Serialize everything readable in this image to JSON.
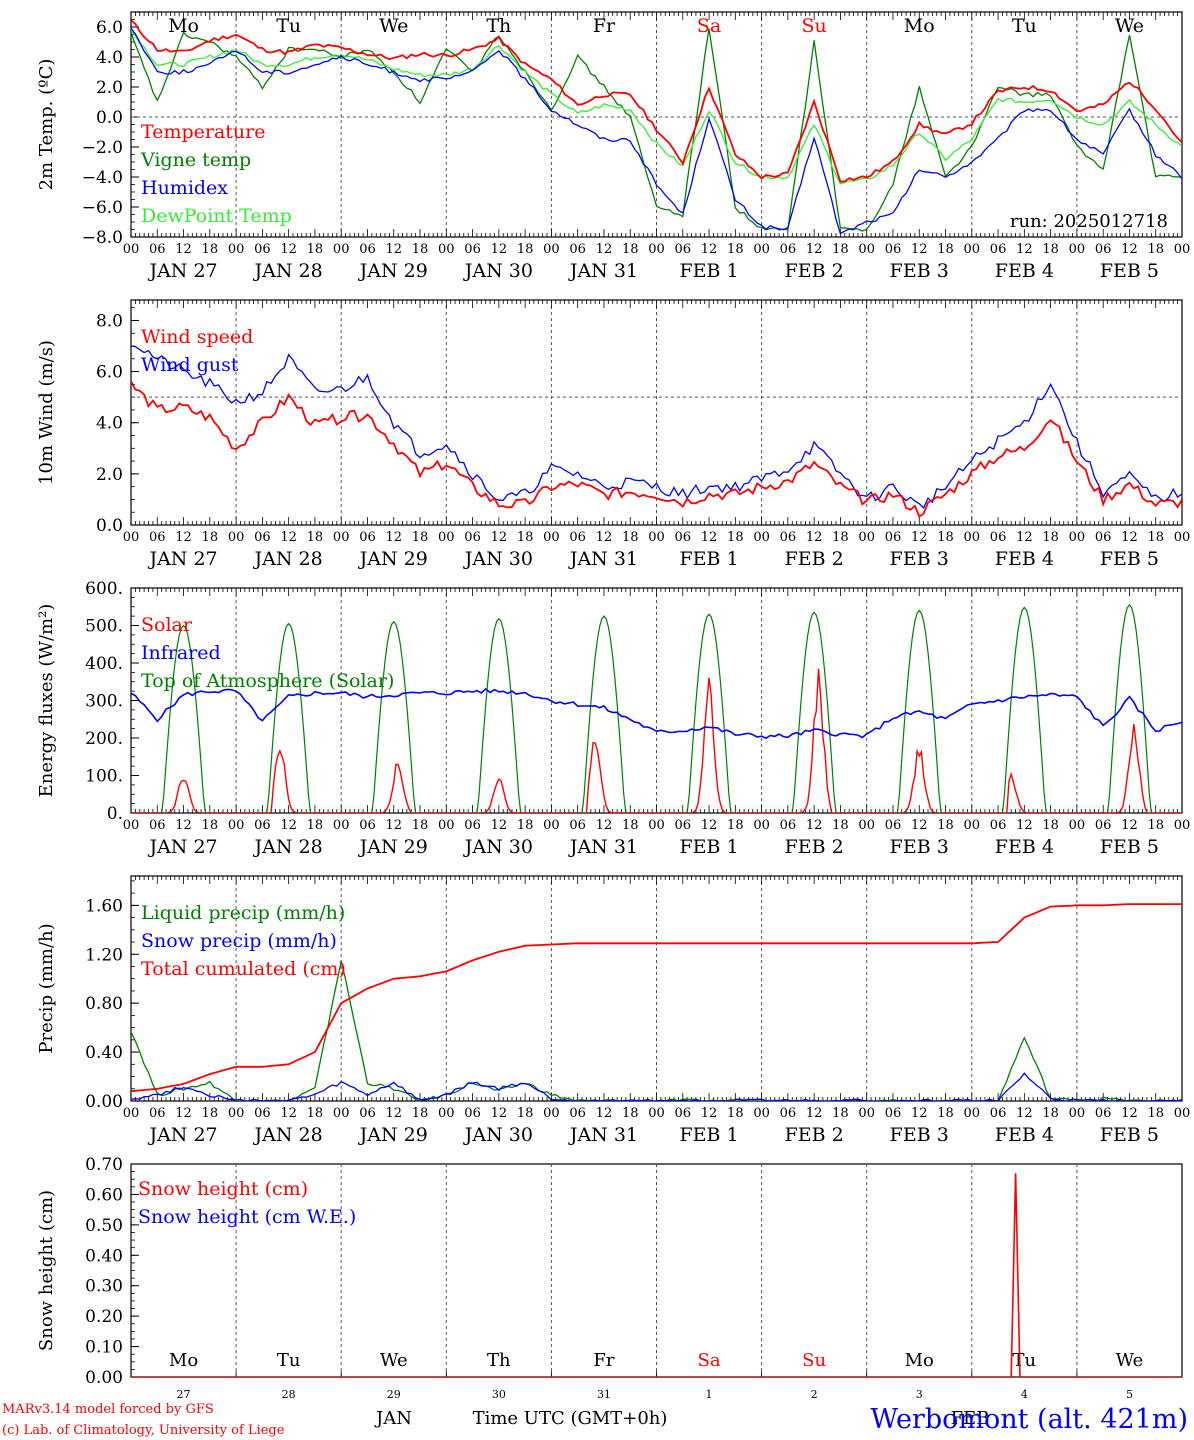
{
  "meteogram": {
    "run_label": "run: 2025012718",
    "footer_model": "MARv3.14 model forced by GFS",
    "footer_lab": "(c) Lab. of Climatology, University of Liege",
    "station": "Werbomont (alt. 421m)",
    "bottom_month_1": "JAN",
    "bottom_month_2": "FEB",
    "time_axis_title": "Time UTC (GMT+0h)"
  },
  "colors": {
    "red": "#ff0000",
    "green": "#008000",
    "blue": "#0000ff",
    "lightgreen": "#33ee33",
    "grid": "#555555"
  },
  "chart_data": [
    {
      "type": "line",
      "ylabel": "2m Temp. (ºC)",
      "ylim": [
        -8,
        7
      ],
      "yticks": [
        "6.0",
        "4.0",
        "2.0",
        "0.0",
        "−2.0",
        "−4.0",
        "−6.0",
        "−8.0"
      ],
      "ytick_values": [
        6,
        4,
        2,
        0,
        -2,
        -4,
        -6,
        -8
      ],
      "x_hours": [
        0,
        6,
        12,
        18,
        24,
        30,
        36,
        42,
        48,
        54,
        60,
        66,
        72,
        78,
        84,
        90,
        96,
        102,
        108,
        114,
        120,
        126,
        132,
        138,
        144,
        150,
        156,
        162,
        168,
        174,
        180,
        186,
        192,
        198,
        204,
        210,
        216,
        222,
        228,
        234,
        240
      ],
      "series": [
        {
          "name": "Temperature",
          "color": "red",
          "values": [
            6.4,
            4.5,
            4.3,
            5.1,
            5.5,
            4.5,
            4.3,
            4.8,
            4.6,
            4.2,
            3.9,
            4.2,
            4.1,
            4.5,
            5.2,
            3.5,
            2.5,
            0.8,
            1.5,
            1.5,
            -0.8,
            -3.0,
            2.0,
            -2.5,
            -4.0,
            -3.8,
            1.0,
            -4.2,
            -4.0,
            -3.0,
            -0.5,
            -1.2,
            -0.4,
            1.7,
            2.0,
            1.8,
            0.4,
            0.8,
            2.4,
            0.6,
            -1.8
          ]
        },
        {
          "name": "Vigne temp",
          "color": "green",
          "values": [
            5.5,
            1.0,
            5.5,
            5.0,
            4.0,
            2.0,
            4.5,
            4.5,
            4.0,
            4.5,
            3.0,
            1.0,
            4.5,
            3.0,
            5.5,
            3.0,
            0.5,
            4.0,
            2.0,
            0.0,
            -6.0,
            -6.5,
            6.0,
            -6.0,
            -7.5,
            -7.5,
            5.0,
            -7.5,
            -7.5,
            -4.5,
            2.0,
            -4.0,
            -2.0,
            2.0,
            1.5,
            1.5,
            -2.0,
            -3.5,
            5.5,
            -4.0,
            -4.0
          ]
        },
        {
          "name": "Humidex",
          "color": "blue",
          "values": [
            6.0,
            3.0,
            3.0,
            3.5,
            4.5,
            3.0,
            3.0,
            3.5,
            4.0,
            3.5,
            3.0,
            2.5,
            2.5,
            3.0,
            4.5,
            2.5,
            0.5,
            -0.5,
            -1.5,
            -1.5,
            -4.5,
            -6.5,
            0.0,
            -5.5,
            -7.3,
            -7.5,
            -1.3,
            -7.8,
            -7.0,
            -6.5,
            -3.5,
            -4.0,
            -3.0,
            -1.5,
            0.5,
            0.5,
            -1.5,
            -2.5,
            0.5,
            -2.5,
            -4.0
          ]
        },
        {
          "name": "DewPoint Temp",
          "color": "lightgreen",
          "values": [
            5.8,
            3.5,
            3.5,
            4.0,
            4.5,
            3.5,
            3.5,
            4.0,
            4.2,
            3.8,
            3.2,
            2.8,
            2.8,
            3.2,
            4.8,
            3.0,
            1.5,
            0.2,
            0.8,
            0.5,
            -1.8,
            -3.3,
            0.5,
            -3.0,
            -4.0,
            -4.0,
            -0.5,
            -4.4,
            -4.2,
            -3.2,
            -1.0,
            -2.8,
            -1.5,
            1.2,
            1.0,
            1.2,
            0.0,
            -0.5,
            1.0,
            -0.5,
            -2.0
          ]
        }
      ],
      "hline": 0,
      "day_labels": [
        "Mo",
        "Tu",
        "We",
        "Th",
        "Fr",
        "Sa",
        "Su",
        "Mo",
        "Tu",
        "We"
      ],
      "date_labels": [
        "JAN 27",
        "JAN 28",
        "JAN 29",
        "JAN 30",
        "JAN 31",
        "FEB  1",
        "FEB  2",
        "FEB  3",
        "FEB  4",
        "FEB  5"
      ],
      "hour_ticks": [
        "00",
        "06",
        "12",
        "18"
      ]
    },
    {
      "type": "line",
      "ylabel": "10m Wind (m/s)",
      "ylim": [
        0,
        8.8
      ],
      "yticks": [
        "8.0",
        "6.0",
        "4.0",
        "2.0",
        "0.0"
      ],
      "ytick_values": [
        8,
        6,
        4,
        2,
        0
      ],
      "x_hours": [
        0,
        6,
        12,
        18,
        24,
        30,
        36,
        42,
        48,
        54,
        60,
        66,
        72,
        78,
        84,
        90,
        96,
        102,
        108,
        114,
        120,
        126,
        132,
        138,
        144,
        150,
        156,
        162,
        168,
        174,
        180,
        186,
        192,
        198,
        204,
        210,
        216,
        222,
        228,
        234,
        240
      ],
      "series": [
        {
          "name": "Wind speed",
          "color": "red",
          "values": [
            5.5,
            4.5,
            4.6,
            4.2,
            3.0,
            4.0,
            5.0,
            3.9,
            4.2,
            4.3,
            3.2,
            2.0,
            2.4,
            1.5,
            0.8,
            0.8,
            1.5,
            1.6,
            1.2,
            1.3,
            1.2,
            0.9,
            1.2,
            1.2,
            1.5,
            1.7,
            2.4,
            1.5,
            0.9,
            1.2,
            0.5,
            1.2,
            2.0,
            2.7,
            3.0,
            4.2,
            2.5,
            1.0,
            1.6,
            0.8,
            0.9
          ]
        },
        {
          "name": "Wind gust",
          "color": "blue",
          "values": [
            7.2,
            6.5,
            6.0,
            5.5,
            4.8,
            5.2,
            6.5,
            5.2,
            5.3,
            5.8,
            4.0,
            2.8,
            3.2,
            2.0,
            1.0,
            1.2,
            2.2,
            2.0,
            1.5,
            1.7,
            1.5,
            1.2,
            1.5,
            1.5,
            1.8,
            2.2,
            3.1,
            2.0,
            1.0,
            1.5,
            0.7,
            1.5,
            2.5,
            3.3,
            4.0,
            5.6,
            3.2,
            1.3,
            1.9,
            1.0,
            1.3
          ]
        }
      ],
      "hline": 5,
      "date_labels": [
        "JAN 27",
        "JAN 28",
        "JAN 29",
        "JAN 30",
        "JAN 31",
        "FEB  1",
        "FEB  2",
        "FEB  3",
        "FEB  4",
        "FEB  5"
      ]
    },
    {
      "type": "line",
      "ylabel": "Energy fluxes (W/m²)",
      "ylim": [
        0,
        600
      ],
      "yticks": [
        "600.",
        "500.",
        "400.",
        "300.",
        "200.",
        "100.",
        "0."
      ],
      "ytick_values": [
        600,
        500,
        400,
        300,
        200,
        100,
        0
      ],
      "series": [
        {
          "name": "Solar",
          "color": "red",
          "peaks": [
            115,
            195,
            150,
            100,
            225,
            365,
            385,
            185,
            110,
            255
          ],
          "peak_hours": [
            12,
            10,
            13,
            12,
            10,
            12,
            13,
            12,
            9,
            13
          ]
        },
        {
          "name": "Infrared",
          "color": "blue",
          "values": [
            320,
            250,
            315,
            325,
            325,
            245,
            310,
            320,
            320,
            310,
            315,
            320,
            320,
            325,
            325,
            320,
            300,
            290,
            280,
            250,
            215,
            220,
            230,
            210,
            205,
            205,
            220,
            210,
            205,
            255,
            270,
            250,
            290,
            300,
            310,
            315,
            310,
            230,
            305,
            220,
            245
          ]
        },
        {
          "name": "Top of Atmosphere (Solar)",
          "color": "green",
          "peaks": [
            500,
            505,
            510,
            518,
            525,
            530,
            535,
            540,
            548,
            555
          ]
        }
      ],
      "date_labels": [
        "JAN 27",
        "JAN 28",
        "JAN 29",
        "JAN 30",
        "JAN 31",
        "FEB  1",
        "FEB  2",
        "FEB  3",
        "FEB  4",
        "FEB  5"
      ]
    },
    {
      "type": "line",
      "ylabel": "Precip (mm/h)",
      "ylim": [
        0,
        1.84
      ],
      "yticks": [
        "1.60",
        "1.20",
        "0.80",
        "0.40",
        "0.00"
      ],
      "ytick_values": [
        1.6,
        1.2,
        0.8,
        0.4,
        0
      ],
      "x_hours": [
        0,
        6,
        12,
        18,
        24,
        30,
        36,
        42,
        48,
        54,
        60,
        66,
        72,
        78,
        84,
        90,
        96,
        102,
        108,
        114,
        120,
        126,
        132,
        138,
        144,
        150,
        156,
        162,
        168,
        174,
        180,
        186,
        192,
        198,
        204,
        210,
        216,
        222,
        228,
        234,
        240
      ],
      "series": [
        {
          "name": "Liquid precip (mm/h)",
          "color": "green",
          "values": [
            0.58,
            0.05,
            0.1,
            0.15,
            0.0,
            0.0,
            0.0,
            0.1,
            1.15,
            0.15,
            0.1,
            0.0,
            0.05,
            0.15,
            0.08,
            0.15,
            0.05,
            0.0,
            0.0,
            0.0,
            0.0,
            0.0,
            0.0,
            0.0,
            0.0,
            0.0,
            0.0,
            0.0,
            0.0,
            0.0,
            0.0,
            0.0,
            0.0,
            0.0,
            0.52,
            0.02,
            0.0,
            0.02,
            0.0,
            0.0,
            0.0
          ]
        },
        {
          "name": "Snow precip (mm/h)",
          "color": "blue",
          "values": [
            0.02,
            0.05,
            0.12,
            0.05,
            0.0,
            0.0,
            0.0,
            0.05,
            0.15,
            0.05,
            0.15,
            0.0,
            0.05,
            0.15,
            0.1,
            0.15,
            0.02,
            0.0,
            0.0,
            0.0,
            0.0,
            0.0,
            0.0,
            0.0,
            0.0,
            0.0,
            0.0,
            0.0,
            0.0,
            0.0,
            0.0,
            0.0,
            0.0,
            0.0,
            0.22,
            0.02,
            0.0,
            0.0,
            0.0,
            0.0,
            0.0
          ]
        },
        {
          "name": "Total cumulated (cm)",
          "color": "red",
          "values": [
            0.08,
            0.1,
            0.14,
            0.22,
            0.28,
            0.28,
            0.3,
            0.4,
            0.8,
            0.92,
            1.0,
            1.02,
            1.06,
            1.15,
            1.22,
            1.27,
            1.28,
            1.29,
            1.29,
            1.29,
            1.29,
            1.29,
            1.29,
            1.29,
            1.29,
            1.29,
            1.29,
            1.29,
            1.29,
            1.29,
            1.29,
            1.29,
            1.29,
            1.3,
            1.5,
            1.59,
            1.6,
            1.6,
            1.61,
            1.61,
            1.61
          ]
        }
      ],
      "date_labels": [
        "JAN 27",
        "JAN 28",
        "JAN 29",
        "JAN 30",
        "JAN 31",
        "FEB  1",
        "FEB  2",
        "FEB  3",
        "FEB  4",
        "FEB  5"
      ]
    },
    {
      "type": "line",
      "ylabel": "Snow height (cm)",
      "ylim": [
        0,
        0.7
      ],
      "yticks": [
        "0.70",
        "0.60",
        "0.50",
        "0.40",
        "0.30",
        "0.20",
        "0.10",
        "0.00"
      ],
      "ytick_values": [
        0.7,
        0.6,
        0.5,
        0.4,
        0.3,
        0.2,
        0.1,
        0
      ],
      "series": [
        {
          "name": "Snow height (cm)",
          "color": "red",
          "spike_hour": 202,
          "spike_value": 0.67
        },
        {
          "name": "Snow height (cm W.E.)",
          "color": "blue",
          "spike_hour": 202,
          "spike_value": 0.0
        }
      ],
      "day_labels": [
        "Mo",
        "Tu",
        "We",
        "Th",
        "Fr",
        "Sa",
        "Su",
        "Mo",
        "Tu",
        "We"
      ],
      "day_numbers": [
        "27",
        "28",
        "29",
        "30",
        "31",
        "1",
        "2",
        "3",
        "4",
        "5"
      ]
    }
  ]
}
